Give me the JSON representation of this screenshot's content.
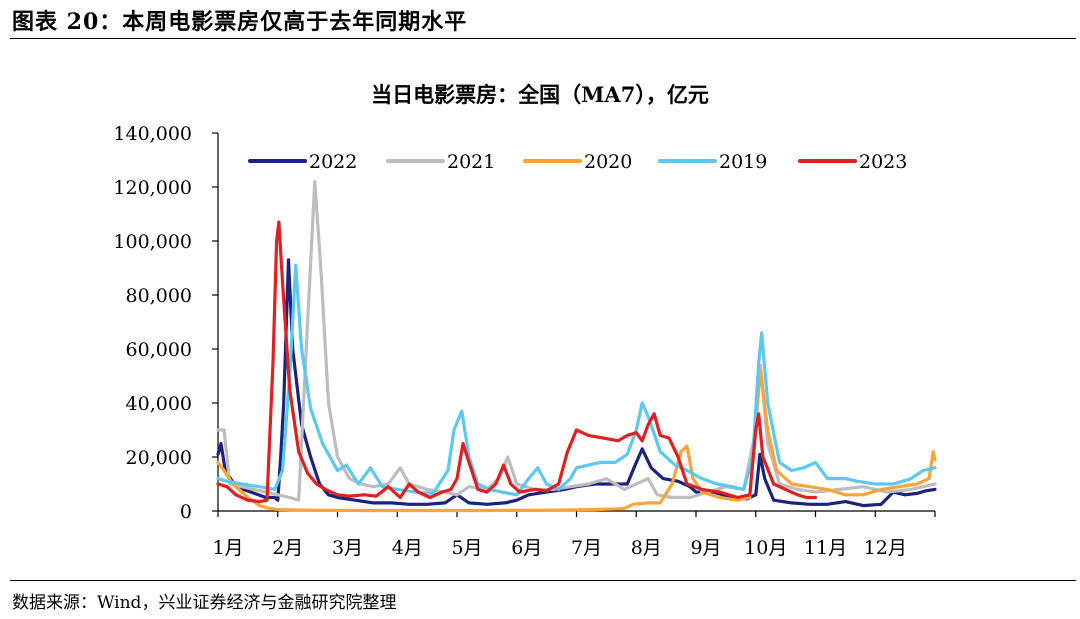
{
  "figure": {
    "title": "图表 20：本周电影票房仅高于去年同期水平",
    "source": "数据来源：Wind，兴业证券经济与金融研究院整理"
  },
  "chart_data": {
    "type": "line",
    "title": "当日电影票房：全国（MA7），亿元",
    "xlabel": "",
    "ylabel": "",
    "ylim": [
      0,
      140000
    ],
    "y_ticks": [
      "0",
      "20,000",
      "40,000",
      "60,000",
      "80,000",
      "100,000",
      "120,000",
      "140,000"
    ],
    "x_tick_labels": [
      "1月",
      "2月",
      "3月",
      "4月",
      "5月",
      "6月",
      "7月",
      "8月",
      "9月",
      "10月",
      "11月",
      "12月"
    ],
    "x_unit": "month (1.0 = Jan 1)",
    "xlim": [
      1,
      13
    ],
    "grid": false,
    "legend_position": "top",
    "series": [
      {
        "name": "2022",
        "color": "#1a237e",
        "points": [
          [
            1.0,
            21000
          ],
          [
            1.05,
            25000
          ],
          [
            1.12,
            15000
          ],
          [
            1.3,
            9000
          ],
          [
            1.55,
            7000
          ],
          [
            1.8,
            5000
          ],
          [
            1.95,
            5000
          ],
          [
            2.0,
            4000
          ],
          [
            2.05,
            20000
          ],
          [
            2.1,
            40000
          ],
          [
            2.18,
            93000
          ],
          [
            2.25,
            60000
          ],
          [
            2.4,
            32000
          ],
          [
            2.55,
            20000
          ],
          [
            2.7,
            10000
          ],
          [
            2.85,
            6000
          ],
          [
            3.0,
            5000
          ],
          [
            3.3,
            4000
          ],
          [
            3.6,
            3000
          ],
          [
            3.9,
            3000
          ],
          [
            4.2,
            2500
          ],
          [
            4.5,
            2500
          ],
          [
            4.8,
            3000
          ],
          [
            5.0,
            6000
          ],
          [
            5.2,
            3000
          ],
          [
            5.5,
            2500
          ],
          [
            5.8,
            3000
          ],
          [
            6.0,
            4000
          ],
          [
            6.2,
            6000
          ],
          [
            6.5,
            7000
          ],
          [
            6.8,
            8000
          ],
          [
            7.0,
            9000
          ],
          [
            7.3,
            10000
          ],
          [
            7.6,
            10000
          ],
          [
            7.85,
            10000
          ],
          [
            8.0,
            18000
          ],
          [
            8.1,
            23000
          ],
          [
            8.25,
            16000
          ],
          [
            8.45,
            12000
          ],
          [
            8.7,
            11000
          ],
          [
            8.9,
            9000
          ],
          [
            9.0,
            7000
          ],
          [
            9.3,
            7000
          ],
          [
            9.6,
            5000
          ],
          [
            9.85,
            4500
          ],
          [
            10.0,
            6000
          ],
          [
            10.07,
            21000
          ],
          [
            10.15,
            12000
          ],
          [
            10.3,
            4000
          ],
          [
            10.6,
            3000
          ],
          [
            10.9,
            2500
          ],
          [
            11.2,
            2500
          ],
          [
            11.5,
            3500
          ],
          [
            11.8,
            2000
          ],
          [
            12.1,
            2500
          ],
          [
            12.3,
            7000
          ],
          [
            12.5,
            6000
          ],
          [
            12.7,
            6500
          ],
          [
            12.85,
            7500
          ],
          [
            13.0,
            8000
          ]
        ]
      },
      {
        "name": "2021",
        "color": "#bdbdbd",
        "points": [
          [
            1.0,
            30000
          ],
          [
            1.1,
            30000
          ],
          [
            1.2,
            10000
          ],
          [
            1.4,
            9000
          ],
          [
            1.6,
            8000
          ],
          [
            1.8,
            7000
          ],
          [
            2.0,
            6000
          ],
          [
            2.2,
            5000
          ],
          [
            2.35,
            4000
          ],
          [
            2.5,
            70000
          ],
          [
            2.62,
            122000
          ],
          [
            2.72,
            90000
          ],
          [
            2.85,
            40000
          ],
          [
            3.0,
            20000
          ],
          [
            3.2,
            12000
          ],
          [
            3.4,
            10000
          ],
          [
            3.6,
            9000
          ],
          [
            3.85,
            10000
          ],
          [
            4.05,
            16000
          ],
          [
            4.2,
            10000
          ],
          [
            4.5,
            8000
          ],
          [
            4.8,
            7000
          ],
          [
            5.0,
            6000
          ],
          [
            5.2,
            9000
          ],
          [
            5.5,
            8000
          ],
          [
            5.7,
            12000
          ],
          [
            5.85,
            20000
          ],
          [
            6.0,
            10000
          ],
          [
            6.3,
            8000
          ],
          [
            6.6,
            8000
          ],
          [
            6.9,
            9000
          ],
          [
            7.2,
            10000
          ],
          [
            7.5,
            12000
          ],
          [
            7.8,
            8000
          ],
          [
            8.0,
            10000
          ],
          [
            8.2,
            12000
          ],
          [
            8.35,
            6000
          ],
          [
            8.6,
            5000
          ],
          [
            8.9,
            5000
          ],
          [
            9.2,
            7000
          ],
          [
            9.5,
            9000
          ],
          [
            9.8,
            8000
          ],
          [
            10.0,
            30000
          ],
          [
            10.08,
            54000
          ],
          [
            10.2,
            25000
          ],
          [
            10.4,
            10000
          ],
          [
            10.7,
            8000
          ],
          [
            11.0,
            7000
          ],
          [
            11.4,
            8000
          ],
          [
            11.8,
            9000
          ],
          [
            12.2,
            7000
          ],
          [
            12.6,
            8000
          ],
          [
            13.0,
            10000
          ]
        ]
      },
      {
        "name": "2020",
        "color": "#f9a43a",
        "points": [
          [
            1.0,
            18000
          ],
          [
            1.1,
            15000
          ],
          [
            1.25,
            10000
          ],
          [
            1.5,
            5000
          ],
          [
            1.7,
            2000
          ],
          [
            1.85,
            1000
          ],
          [
            2.0,
            500
          ],
          [
            2.5,
            300
          ],
          [
            3.5,
            200
          ],
          [
            4.5,
            200
          ],
          [
            5.5,
            200
          ],
          [
            6.5,
            300
          ],
          [
            7.3,
            500
          ],
          [
            7.7,
            800
          ],
          [
            7.8,
            1000
          ],
          [
            7.95,
            2500
          ],
          [
            8.2,
            3000
          ],
          [
            8.4,
            3000
          ],
          [
            8.6,
            10000
          ],
          [
            8.75,
            22000
          ],
          [
            8.85,
            24000
          ],
          [
            8.95,
            12000
          ],
          [
            9.1,
            7000
          ],
          [
            9.4,
            5000
          ],
          [
            9.7,
            4000
          ],
          [
            9.9,
            5000
          ],
          [
            10.0,
            35000
          ],
          [
            10.08,
            52000
          ],
          [
            10.2,
            30000
          ],
          [
            10.35,
            15000
          ],
          [
            10.6,
            10000
          ],
          [
            10.9,
            9000
          ],
          [
            11.2,
            8000
          ],
          [
            11.5,
            6000
          ],
          [
            11.8,
            6000
          ],
          [
            12.1,
            8000
          ],
          [
            12.4,
            9000
          ],
          [
            12.7,
            10000
          ],
          [
            12.9,
            12000
          ],
          [
            12.97,
            22000
          ],
          [
            13.0,
            19000
          ]
        ]
      },
      {
        "name": "2019",
        "color": "#5bc8ef",
        "points": [
          [
            1.0,
            12000
          ],
          [
            1.15,
            11000
          ],
          [
            1.4,
            10000
          ],
          [
            1.7,
            9000
          ],
          [
            1.95,
            8000
          ],
          [
            2.08,
            15000
          ],
          [
            2.2,
            50000
          ],
          [
            2.3,
            91000
          ],
          [
            2.4,
            60000
          ],
          [
            2.55,
            38000
          ],
          [
            2.75,
            25000
          ],
          [
            3.0,
            15000
          ],
          [
            3.15,
            17000
          ],
          [
            3.35,
            10000
          ],
          [
            3.55,
            16000
          ],
          [
            3.75,
            9000
          ],
          [
            4.0,
            8000
          ],
          [
            4.3,
            7000
          ],
          [
            4.6,
            6500
          ],
          [
            4.85,
            15000
          ],
          [
            4.95,
            30000
          ],
          [
            5.08,
            37000
          ],
          [
            5.2,
            20000
          ],
          [
            5.35,
            10000
          ],
          [
            5.55,
            8000
          ],
          [
            5.75,
            7000
          ],
          [
            6.0,
            6000
          ],
          [
            6.2,
            12000
          ],
          [
            6.35,
            16000
          ],
          [
            6.5,
            10000
          ],
          [
            6.7,
            8000
          ],
          [
            6.9,
            12000
          ],
          [
            7.0,
            16000
          ],
          [
            7.2,
            17000
          ],
          [
            7.4,
            18000
          ],
          [
            7.65,
            18000
          ],
          [
            7.85,
            21000
          ],
          [
            8.0,
            30000
          ],
          [
            8.1,
            40000
          ],
          [
            8.2,
            35000
          ],
          [
            8.4,
            22000
          ],
          [
            8.65,
            17000
          ],
          [
            8.85,
            15000
          ],
          [
            9.1,
            12000
          ],
          [
            9.35,
            10000
          ],
          [
            9.6,
            9000
          ],
          [
            9.8,
            8000
          ],
          [
            9.95,
            20000
          ],
          [
            10.05,
            55000
          ],
          [
            10.1,
            66000
          ],
          [
            10.2,
            40000
          ],
          [
            10.4,
            18000
          ],
          [
            10.6,
            15000
          ],
          [
            10.8,
            16000
          ],
          [
            11.0,
            18000
          ],
          [
            11.2,
            12000
          ],
          [
            11.5,
            12000
          ],
          [
            11.7,
            11000
          ],
          [
            12.0,
            10000
          ],
          [
            12.3,
            10000
          ],
          [
            12.6,
            12000
          ],
          [
            12.8,
            15000
          ],
          [
            13.0,
            16000
          ]
        ]
      },
      {
        "name": "2023",
        "color": "#e02020",
        "points": [
          [
            1.0,
            10000
          ],
          [
            1.15,
            9000
          ],
          [
            1.3,
            6000
          ],
          [
            1.5,
            4000
          ],
          [
            1.7,
            3500
          ],
          [
            1.82,
            4000
          ],
          [
            1.92,
            55000
          ],
          [
            1.98,
            100000
          ],
          [
            2.02,
            107000
          ],
          [
            2.08,
            85000
          ],
          [
            2.2,
            45000
          ],
          [
            2.35,
            22000
          ],
          [
            2.5,
            14000
          ],
          [
            2.65,
            10000
          ],
          [
            2.8,
            8000
          ],
          [
            3.0,
            6000
          ],
          [
            3.2,
            5500
          ],
          [
            3.45,
            6000
          ],
          [
            3.65,
            5500
          ],
          [
            3.85,
            9000
          ],
          [
            4.05,
            5000
          ],
          [
            4.2,
            10000
          ],
          [
            4.35,
            7000
          ],
          [
            4.55,
            5000
          ],
          [
            4.75,
            7000
          ],
          [
            4.9,
            8000
          ],
          [
            5.0,
            12000
          ],
          [
            5.1,
            25000
          ],
          [
            5.2,
            18000
          ],
          [
            5.35,
            8000
          ],
          [
            5.5,
            7000
          ],
          [
            5.65,
            10000
          ],
          [
            5.78,
            17000
          ],
          [
            5.9,
            10000
          ],
          [
            6.05,
            7000
          ],
          [
            6.3,
            8000
          ],
          [
            6.5,
            7500
          ],
          [
            6.7,
            10000
          ],
          [
            6.85,
            22000
          ],
          [
            7.0,
            30000
          ],
          [
            7.2,
            28000
          ],
          [
            7.45,
            27000
          ],
          [
            7.7,
            26000
          ],
          [
            7.85,
            28000
          ],
          [
            8.0,
            29000
          ],
          [
            8.1,
            26000
          ],
          [
            8.2,
            32000
          ],
          [
            8.3,
            36000
          ],
          [
            8.4,
            28000
          ],
          [
            8.55,
            27000
          ],
          [
            8.7,
            20000
          ],
          [
            8.85,
            10000
          ],
          [
            9.1,
            8000
          ],
          [
            9.4,
            7000
          ],
          [
            9.7,
            5000
          ],
          [
            9.9,
            6000
          ],
          [
            10.0,
            30000
          ],
          [
            10.05,
            36000
          ],
          [
            10.12,
            20000
          ],
          [
            10.3,
            10000
          ],
          [
            10.5,
            8000
          ],
          [
            10.7,
            6000
          ],
          [
            10.85,
            5000
          ],
          [
            11.0,
            5000
          ]
        ]
      }
    ]
  }
}
